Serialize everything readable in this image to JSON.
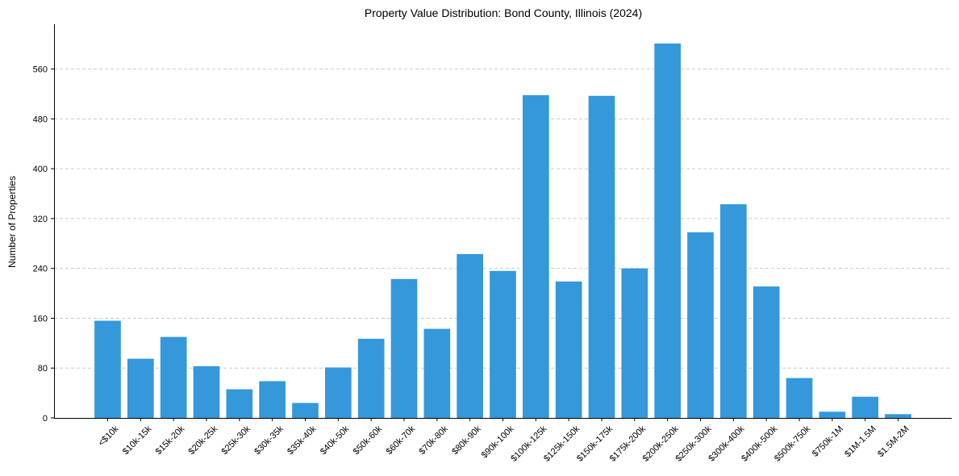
{
  "chart_data": {
    "type": "bar",
    "title": "Property Value Distribution: Bond County, Illinois (2024)",
    "xlabel": "",
    "ylabel": "Number of Properties",
    "categories": [
      "<$10k",
      "$10k-15k",
      "$15k-20k",
      "$20k-25k",
      "$25k-30k",
      "$30k-35k",
      "$35k-40k",
      "$40k-50k",
      "$50k-60k",
      "$60k-70k",
      "$70k-80k",
      "$80k-90k",
      "$90k-100k",
      "$100k-125k",
      "$125k-150k",
      "$150k-175k",
      "$175k-200k",
      "$200k-250k",
      "$250k-300k",
      "$300k-400k",
      "$400k-500k",
      "$500k-750k",
      "$750k-1M",
      "$1M-1.5M",
      "$1.5M-2M"
    ],
    "values": [
      156,
      95,
      130,
      83,
      46,
      59,
      24,
      81,
      127,
      223,
      143,
      263,
      236,
      518,
      219,
      517,
      240,
      601,
      298,
      343,
      211,
      64,
      10,
      34,
      6
    ],
    "yticks": [
      0,
      80,
      160,
      240,
      320,
      400,
      480,
      560
    ],
    "ylim": [
      0,
      632
    ],
    "grid": "y-dashed",
    "colors": {
      "bar": "#3498db",
      "grid": "#cccccc",
      "axis": "#000000"
    }
  }
}
